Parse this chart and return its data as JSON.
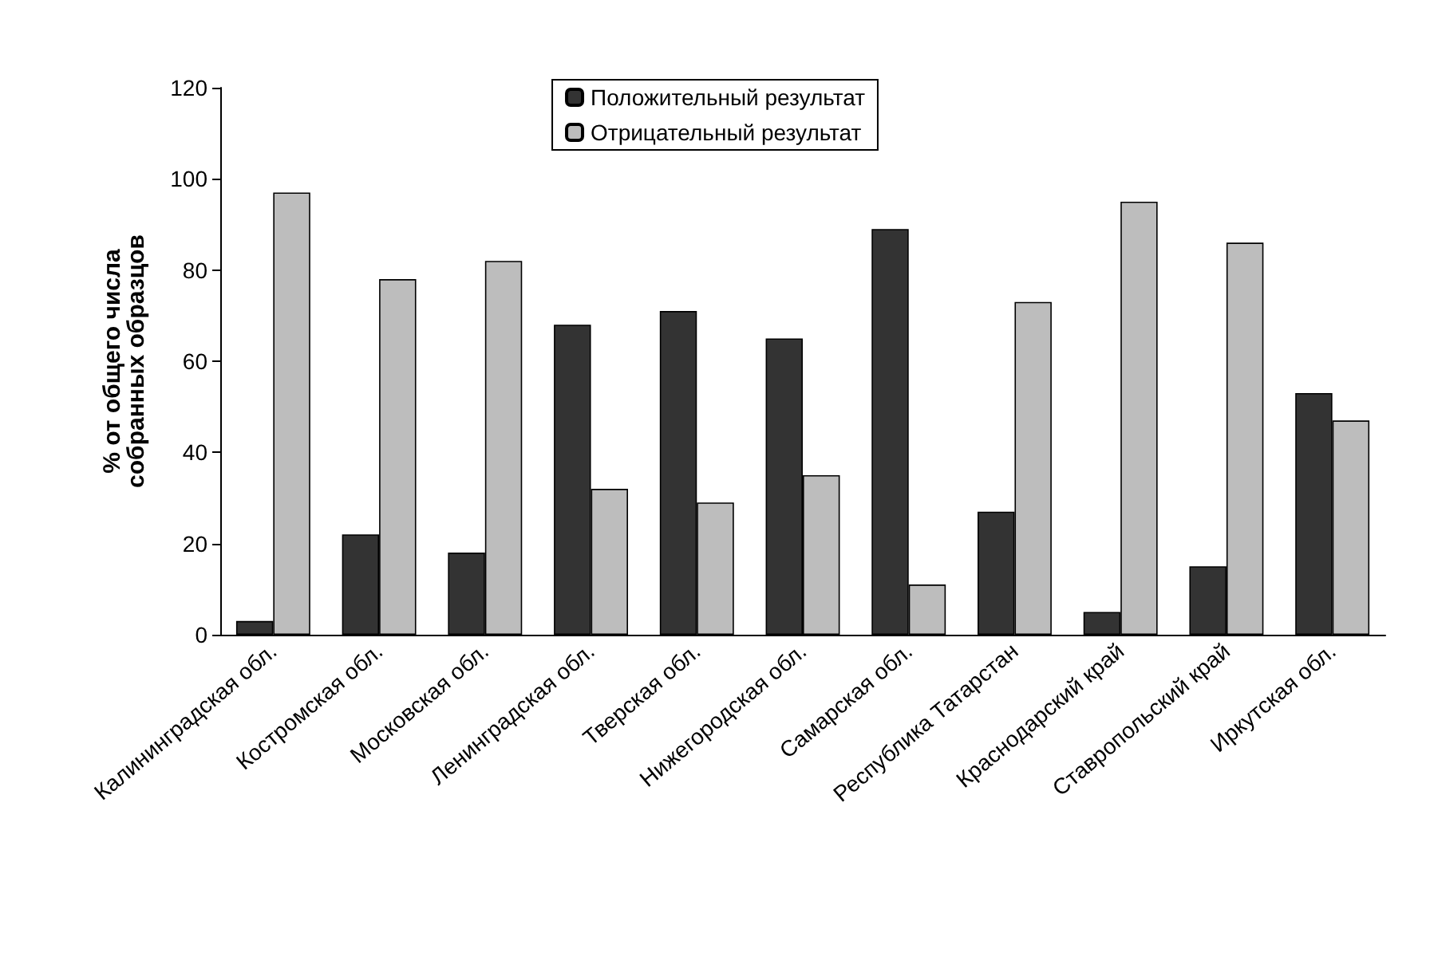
{
  "chart_data": {
    "type": "bar",
    "ylabel": "% от общего числа\nсобранных образцов",
    "categories": [
      "Калининградская обл.",
      "Костромская обл.",
      "Московская обл.",
      "Ленинградская обл.",
      "Тверская обл.",
      "Нижегородская обл.",
      "Самарская обл.",
      "Республика Татарстан",
      "Краснодарский край",
      "Ставропольский край",
      "Иркутская обл."
    ],
    "series": [
      {
        "name": "Положительный результат",
        "color": "#333333",
        "values": [
          3,
          22,
          18,
          68,
          71,
          65,
          89,
          27,
          5,
          15,
          53
        ]
      },
      {
        "name": "Отрицательный результат",
        "color": "#bdbdbd",
        "values": [
          97,
          78,
          82,
          32,
          29,
          35,
          11,
          73,
          95,
          86,
          47
        ]
      }
    ],
    "ylim": [
      0,
      120
    ],
    "yticks": [
      0,
      20,
      40,
      60,
      80,
      100,
      120
    ],
    "grid": false,
    "legend": "top"
  }
}
